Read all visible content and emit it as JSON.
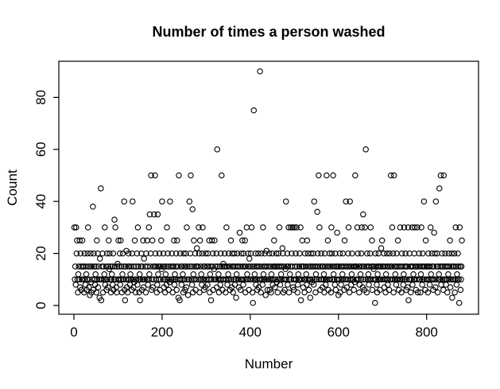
{
  "chart_data": {
    "type": "scatter",
    "title": "Number of times a person washed",
    "xlabel": "Number",
    "ylabel": "Count",
    "xlim": [
      -35,
      919
    ],
    "ylim": [
      -3,
      94
    ],
    "x_ticks": [
      0,
      200,
      400,
      600,
      800
    ],
    "y_ticks": [
      0,
      20,
      40,
      60,
      80
    ],
    "grid": "off",
    "legend": "none",
    "marker": "open-circle",
    "marker_color": "#000000",
    "background_color": "#ffffff",
    "x_start": 1,
    "x_step": 1,
    "n_points": 880,
    "y": [
      30,
      10,
      15,
      8,
      30,
      20,
      25,
      10,
      5,
      12,
      15,
      10,
      25,
      7,
      20,
      15,
      6,
      10,
      25,
      15,
      10,
      15,
      5,
      20,
      10,
      8,
      15,
      12,
      6,
      10,
      20,
      30,
      15,
      7,
      10,
      4,
      15,
      20,
      9,
      5,
      15,
      10,
      38,
      6,
      20,
      15,
      10,
      8,
      12,
      15,
      5,
      25,
      10,
      20,
      7,
      15,
      10,
      3,
      18,
      10,
      45,
      2,
      10,
      15,
      20,
      5,
      15,
      10,
      12,
      30,
      8,
      10,
      15,
      6,
      20,
      10,
      7,
      15,
      25,
      14,
      20,
      10,
      15,
      5,
      10,
      12,
      15,
      8,
      20,
      6,
      10,
      33,
      15,
      30,
      10,
      7,
      5,
      15,
      16,
      10,
      25,
      15,
      10,
      20,
      8,
      25,
      10,
      15,
      5,
      12,
      20,
      10,
      15,
      40,
      6,
      2,
      15,
      10,
      21,
      7,
      10,
      5,
      15,
      20,
      10,
      15,
      8,
      12,
      10,
      15,
      6,
      20,
      40,
      10,
      7,
      15,
      9,
      25,
      10,
      5,
      15,
      10,
      20,
      8,
      30,
      15,
      10,
      5,
      12,
      2,
      10,
      15,
      20,
      6,
      15,
      10,
      25,
      7,
      18,
      10,
      10,
      15,
      5,
      20,
      10,
      25,
      15,
      8,
      10,
      30,
      12,
      35,
      15,
      20,
      50,
      6,
      10,
      25,
      7,
      15,
      10,
      35,
      15,
      50,
      20,
      10,
      15,
      5,
      8,
      35,
      12,
      15,
      10,
      20,
      6,
      15,
      10,
      25,
      14,
      40,
      15,
      10,
      20,
      7,
      15,
      10,
      5,
      12,
      15,
      8,
      30,
      10,
      20,
      15,
      6,
      10,
      9,
      40,
      15,
      10,
      10,
      20,
      15,
      5,
      10,
      15,
      25,
      8,
      12,
      10,
      15,
      20,
      6,
      25,
      10,
      15,
      3,
      50,
      10,
      2,
      20,
      10,
      15,
      8,
      15,
      10,
      12,
      5,
      20,
      15,
      10,
      6,
      15,
      20,
      7,
      30,
      10,
      15,
      4,
      10,
      10,
      40,
      15,
      20,
      50,
      10,
      15,
      8,
      37,
      5,
      12,
      25,
      15,
      10,
      20,
      6,
      15,
      10,
      22,
      15,
      15,
      10,
      30,
      20,
      5,
      25,
      10,
      15,
      12,
      8,
      20,
      30,
      10,
      15,
      6,
      10,
      15,
      7,
      20,
      10,
      10,
      15,
      8,
      20,
      15,
      10,
      25,
      5,
      12,
      15,
      2,
      10,
      25,
      15,
      20,
      6,
      10,
      14,
      25,
      10,
      15,
      10,
      20,
      7,
      60,
      15,
      10,
      12,
      5,
      10,
      15,
      8,
      20,
      10,
      50,
      15,
      6,
      10,
      16,
      15,
      10,
      20,
      15,
      5,
      10,
      30,
      15,
      8,
      10,
      12,
      20,
      15,
      10,
      6,
      15,
      25,
      10,
      7,
      20,
      15,
      5,
      15,
      10,
      20,
      8,
      15,
      10,
      3,
      12,
      15,
      20,
      10,
      15,
      7,
      10,
      28,
      15,
      6,
      10,
      20,
      10,
      25,
      15,
      8,
      20,
      10,
      15,
      25,
      5,
      15,
      10,
      30,
      12,
      10,
      20,
      15,
      6,
      18,
      10,
      15,
      20,
      10,
      30,
      15,
      5,
      1,
      10,
      75,
      15,
      12,
      10,
      20,
      8,
      15,
      10,
      6,
      15,
      20,
      7,
      10,
      15,
      90,
      10,
      5,
      20,
      15,
      10,
      8,
      30,
      12,
      15,
      10,
      20,
      15,
      4,
      10,
      21,
      15,
      6,
      10,
      10,
      15,
      20,
      6,
      10,
      15,
      5,
      12,
      10,
      20,
      8,
      15,
      10,
      25,
      15,
      7,
      10,
      15,
      20,
      9,
      15,
      5,
      10,
      20,
      15,
      30,
      10,
      8,
      15,
      12,
      10,
      15,
      22,
      20,
      5,
      10,
      15,
      6,
      10,
      14,
      40,
      10,
      15,
      20,
      8,
      15,
      30,
      5,
      10,
      12,
      15,
      30,
      10,
      20,
      15,
      30,
      7,
      10,
      6,
      30,
      10,
      15,
      20,
      10,
      30,
      15,
      5,
      8,
      12,
      10,
      15,
      20,
      10,
      30,
      2,
      15,
      10,
      25,
      15,
      7,
      15,
      10,
      5,
      20,
      10,
      15,
      12,
      8,
      25,
      10,
      20,
      15,
      6,
      10,
      15,
      3,
      10,
      20,
      15,
      9,
      10,
      15,
      20,
      8,
      40,
      10,
      15,
      5,
      12,
      15,
      10,
      36,
      20,
      15,
      50,
      10,
      30,
      15,
      6,
      10,
      20,
      10,
      15,
      7,
      15,
      10,
      12,
      5,
      20,
      15,
      8,
      10,
      50,
      15,
      10,
      25,
      6,
      15,
      10,
      20,
      10,
      15,
      5,
      30,
      20,
      10,
      15,
      50,
      12,
      10,
      15,
      8,
      20,
      6,
      15,
      10,
      28,
      15,
      10,
      4,
      15,
      10,
      20,
      5,
      15,
      8,
      10,
      15,
      12,
      20,
      10,
      15,
      6,
      25,
      10,
      15,
      40,
      10,
      7,
      15,
      10,
      20,
      30,
      15,
      5,
      40,
      10,
      15,
      8,
      12,
      20,
      10,
      15,
      10,
      6,
      15,
      9,
      50,
      15,
      10,
      15,
      10,
      30,
      20,
      10,
      15,
      5,
      8,
      15,
      12,
      10,
      20,
      30,
      15,
      7,
      35,
      10,
      15,
      6,
      30,
      10,
      60,
      15,
      5,
      20,
      10,
      15,
      12,
      8,
      15,
      10,
      20,
      30,
      10,
      15,
      25,
      6,
      15,
      10,
      14,
      15,
      10,
      1,
      20,
      10,
      15,
      8,
      5,
      12,
      15,
      20,
      10,
      15,
      6,
      10,
      15,
      22,
      10,
      25,
      15,
      10,
      15,
      20,
      7,
      10,
      15,
      5,
      12,
      10,
      20,
      15,
      8,
      10,
      15,
      6,
      20,
      10,
      15,
      50,
      10,
      15,
      30,
      10,
      20,
      5,
      50,
      15,
      10,
      12,
      15,
      8,
      20,
      10,
      15,
      25,
      10,
      6,
      15,
      10,
      30,
      10,
      15,
      5,
      20,
      15,
      10,
      8,
      12,
      30,
      15,
      10,
      20,
      15,
      6,
      10,
      15,
      7,
      30,
      2,
      10,
      20,
      10,
      15,
      5,
      10,
      15,
      30,
      8,
      15,
      12,
      10,
      20,
      30,
      10,
      15,
      6,
      15,
      10,
      30,
      5,
      15,
      10,
      20,
      15,
      10,
      5,
      12,
      30,
      15,
      8,
      20,
      10,
      15,
      40,
      10,
      15,
      6,
      25,
      10,
      15,
      10,
      15,
      5,
      20,
      15,
      10,
      8,
      15,
      30,
      12,
      10,
      20,
      15,
      10,
      6,
      15,
      28,
      10,
      20,
      7,
      40,
      10,
      15,
      20,
      5,
      15,
      10,
      12,
      45,
      10,
      15,
      50,
      8,
      15,
      20,
      10,
      15,
      6,
      50,
      10,
      15,
      20,
      10,
      8,
      15,
      10,
      5,
      15,
      12,
      20,
      10,
      15,
      25,
      7,
      10,
      15,
      20,
      3,
      10,
      15,
      10,
      15,
      20,
      5,
      10,
      30,
      15,
      8,
      12,
      10,
      20,
      15,
      10,
      1,
      30,
      15,
      6,
      10,
      15,
      25
    ]
  }
}
